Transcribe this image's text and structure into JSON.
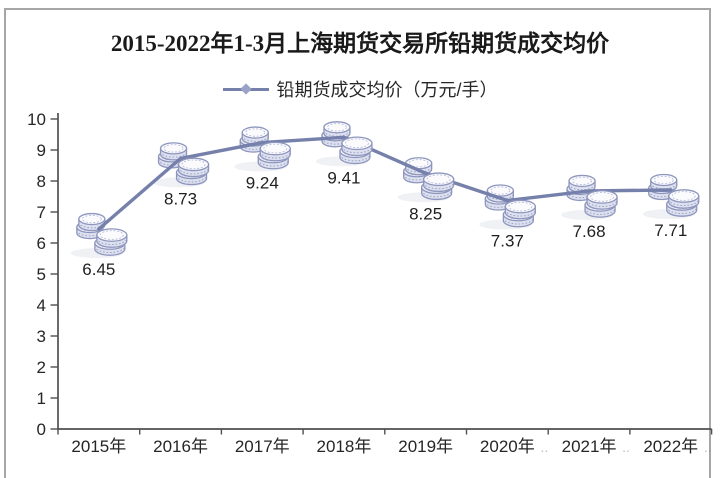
{
  "chart_data": {
    "type": "line",
    "title": "2015-2022年1-3月上海期货交易所铅期货成交均价",
    "legend": "铅期货成交均价（万元/手）",
    "series_name": "铅期货成交均价",
    "unit": "万元/手",
    "categories": [
      "2015年",
      "2016年",
      "2017年",
      "2018年",
      "2019年",
      "2020年",
      "2021年",
      "2022年"
    ],
    "values": [
      6.45,
      8.73,
      9.24,
      9.41,
      8.25,
      7.37,
      7.68,
      7.71
    ],
    "data_labels": [
      "6.45",
      "8.73",
      "9.24",
      "9.41",
      "8.25",
      "7.37",
      "7.68",
      "7.71"
    ],
    "ylim": [
      0,
      10
    ],
    "ytick_step": 1,
    "grid": false,
    "legend_position": "top-center",
    "marker": "coin-stack",
    "clipped_label_dots": "..",
    "clipped_label_dots_indices": [
      5,
      6,
      7
    ],
    "colors": {
      "line": "#7580AB",
      "legend_marker": "#9AA3C7",
      "marker_stroke": "#8E96BE",
      "marker_top_fill": "#FBFBFE",
      "marker_side_fill": "#DDE1EF",
      "marker_lower_fill": "#ECEEF6",
      "title": "#1A1A1A",
      "axis": "#4F4F4F",
      "tick_label": "#262626",
      "data_label": "#1F1F1F",
      "frame_border": "#A6A6A6",
      "background": "#FFFFFF"
    }
  }
}
